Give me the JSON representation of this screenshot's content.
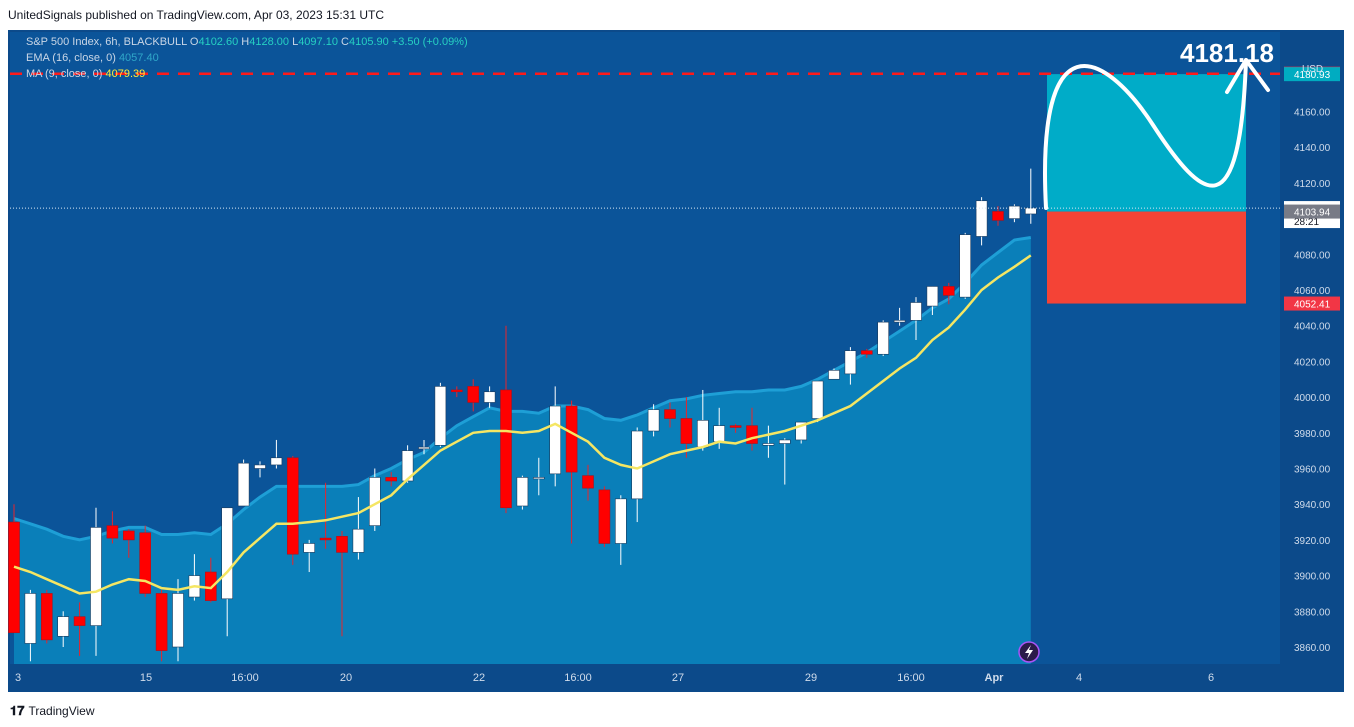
{
  "header": {
    "published_text": "UnitedSignals published on TradingView.com, Apr 03, 2023 15:31 UTC"
  },
  "legend": {
    "symbol": "S&P 500 Index, 6h, BLACKBULL",
    "o_label": "O",
    "o_value": "4102.60",
    "h_label": "H",
    "h_value": "4128.00",
    "l_label": "L",
    "l_value": "4097.10",
    "c_label": "C",
    "c_value": "4105.90",
    "change": "+3.50 (+0.09%)",
    "ema_label": "EMA (16, close, 0)",
    "ema_value": "4057.40",
    "ma_label": "MA (9, close, 0)",
    "ma_value": "4079.39"
  },
  "footer": {
    "brand": "TradingView"
  },
  "annotation": {
    "target_text": "4181.18"
  },
  "chart_data": {
    "type": "candlestick",
    "title": "S&P 500 Index, 6h, BLACKBULL",
    "ylabel": "USD",
    "ylim": [
      3850,
      4190
    ],
    "y_ticks": [
      3860,
      3880,
      3900,
      3920,
      3940,
      3960,
      3980,
      4000,
      4020,
      4040,
      4060,
      4080,
      4100,
      4120,
      4140,
      4160
    ],
    "x_ticks": [
      "3",
      "15",
      "16:00",
      "20",
      "22",
      "16:00",
      "27",
      "29",
      "16:00",
      "Apr",
      "4",
      "6"
    ],
    "candles": [
      {
        "o": 3930,
        "h": 3940,
        "l": 3868,
        "c": 3868
      },
      {
        "o": 3862,
        "h": 3892,
        "l": 3852,
        "c": 3890
      },
      {
        "o": 3890,
        "h": 3892,
        "l": 3862,
        "c": 3864
      },
      {
        "o": 3866,
        "h": 3880,
        "l": 3860,
        "c": 3877
      },
      {
        "o": 3877,
        "h": 3885,
        "l": 3855,
        "c": 3872
      },
      {
        "o": 3872,
        "h": 3938,
        "l": 3855,
        "c": 3927
      },
      {
        "o": 3928,
        "h": 3936,
        "l": 3918,
        "c": 3921
      },
      {
        "o": 3925,
        "h": 3926,
        "l": 3910,
        "c": 3920
      },
      {
        "o": 3924,
        "h": 3928,
        "l": 3888,
        "c": 3890
      },
      {
        "o": 3890,
        "h": 3892,
        "l": 3852,
        "c": 3858
      },
      {
        "o": 3860,
        "h": 3898,
        "l": 3852,
        "c": 3890
      },
      {
        "o": 3888,
        "h": 3912,
        "l": 3886,
        "c": 3900
      },
      {
        "o": 3902,
        "h": 3910,
        "l": 3885,
        "c": 3886
      },
      {
        "o": 3887,
        "h": 3938,
        "l": 3866,
        "c": 3938
      },
      {
        "o": 3939,
        "h": 3965,
        "l": 3939,
        "c": 3963
      },
      {
        "o": 3960,
        "h": 3964,
        "l": 3955,
        "c": 3962
      },
      {
        "o": 3962,
        "h": 3976,
        "l": 3960,
        "c": 3966
      },
      {
        "o": 3966,
        "h": 3967,
        "l": 3906,
        "c": 3912
      },
      {
        "o": 3913,
        "h": 3920,
        "l": 3902,
        "c": 3918
      },
      {
        "o": 3921,
        "h": 3952,
        "l": 3915,
        "c": 3920
      },
      {
        "o": 3922,
        "h": 3925,
        "l": 3866,
        "c": 3913
      },
      {
        "o": 3913,
        "h": 3944,
        "l": 3909,
        "c": 3926
      },
      {
        "o": 3928,
        "h": 3960,
        "l": 3925,
        "c": 3955
      },
      {
        "o": 3955,
        "h": 3958,
        "l": 3950,
        "c": 3953
      },
      {
        "o": 3953,
        "h": 3973,
        "l": 3952,
        "c": 3970
      },
      {
        "o": 3971,
        "h": 3976,
        "l": 3968,
        "c": 3972
      },
      {
        "o": 3973,
        "h": 4008,
        "l": 3972,
        "c": 4006
      },
      {
        "o": 4004,
        "h": 4006,
        "l": 4000,
        "c": 4003
      },
      {
        "o": 4006,
        "h": 4010,
        "l": 3992,
        "c": 3997
      },
      {
        "o": 3997,
        "h": 4006,
        "l": 3994,
        "c": 4003
      },
      {
        "o": 4004,
        "h": 4040,
        "l": 3935,
        "c": 3938
      },
      {
        "o": 3939,
        "h": 3956,
        "l": 3937,
        "c": 3955
      },
      {
        "o": 3955,
        "h": 3966,
        "l": 3945,
        "c": 3955
      },
      {
        "o": 3957,
        "h": 4006,
        "l": 3950,
        "c": 3995
      },
      {
        "o": 3995,
        "h": 3998,
        "l": 3918,
        "c": 3958
      },
      {
        "o": 3956,
        "h": 3962,
        "l": 3942,
        "c": 3949
      },
      {
        "o": 3948,
        "h": 3950,
        "l": 3916,
        "c": 3918
      },
      {
        "o": 3918,
        "h": 3945,
        "l": 3906,
        "c": 3943
      },
      {
        "o": 3943,
        "h": 3983,
        "l": 3930,
        "c": 3981
      },
      {
        "o": 3981,
        "h": 3996,
        "l": 3978,
        "c": 3993
      },
      {
        "o": 3993,
        "h": 3997,
        "l": 3983,
        "c": 3988
      },
      {
        "o": 3988,
        "h": 4000,
        "l": 3966,
        "c": 3974
      },
      {
        "o": 3972,
        "h": 4004,
        "l": 3970,
        "c": 3987
      },
      {
        "o": 3975,
        "h": 3994,
        "l": 3971,
        "c": 3984
      },
      {
        "o": 3984,
        "h": 3985,
        "l": 3980,
        "c": 3983
      },
      {
        "o": 3984,
        "h": 3994,
        "l": 3970,
        "c": 3974
      },
      {
        "o": 3973,
        "h": 3984,
        "l": 3966,
        "c": 3974
      },
      {
        "o": 3974,
        "h": 3977,
        "l": 3951,
        "c": 3976
      },
      {
        "o": 3976,
        "h": 3986,
        "l": 3974,
        "c": 3986
      },
      {
        "o": 3988,
        "h": 4009,
        "l": 3986,
        "c": 4009
      },
      {
        "o": 4010,
        "h": 4016,
        "l": 4010,
        "c": 4015
      },
      {
        "o": 4013,
        "h": 4028,
        "l": 4007,
        "c": 4026
      },
      {
        "o": 4026,
        "h": 4027,
        "l": 4022,
        "c": 4024
      },
      {
        "o": 4024,
        "h": 4043,
        "l": 4023,
        "c": 4042
      },
      {
        "o": 4042,
        "h": 4050,
        "l": 4040,
        "c": 4043
      },
      {
        "o": 4043,
        "h": 4056,
        "l": 4032,
        "c": 4053
      },
      {
        "o": 4051,
        "h": 4062,
        "l": 4046,
        "c": 4062
      },
      {
        "o": 4062,
        "h": 4064,
        "l": 4052,
        "c": 4057
      },
      {
        "o": 4056,
        "h": 4092,
        "l": 4055,
        "c": 4091
      },
      {
        "o": 4090,
        "h": 4112,
        "l": 4085,
        "c": 4110
      },
      {
        "o": 4104,
        "h": 4107,
        "l": 4096,
        "c": 4099
      },
      {
        "o": 4100,
        "h": 4108,
        "l": 4098,
        "c": 4107
      },
      {
        "o": 4102.6,
        "h": 4128,
        "l": 4097.1,
        "c": 4105.9
      }
    ],
    "ema": [
      3900,
      3897,
      3894,
      3890,
      3888,
      3890,
      3893,
      3895,
      3895,
      3891,
      3891,
      3892,
      3891,
      3897,
      3905,
      3912,
      3918,
      3918,
      3918,
      3918,
      3918,
      3919,
      3924,
      3928,
      3933,
      3937,
      3945,
      3952,
      3957,
      3962,
      3960,
      3960,
      3959,
      3963,
      3963,
      3961,
      3956,
      3955,
      3958,
      3962,
      3966,
      3967,
      3969,
      3970,
      3971,
      3971,
      3972,
      3972,
      3974,
      3978,
      3983,
      3988,
      3993,
      3999,
      4005,
      4011,
      4018,
      4023,
      4032,
      4042,
      4049,
      4056,
      4057.4
    ],
    "ma": [
      3905,
      3902,
      3898,
      3894,
      3890,
      3891,
      3895,
      3898,
      3897,
      3893,
      3892,
      3894,
      3893,
      3902,
      3913,
      3921,
      3929,
      3929,
      3930,
      3931,
      3933,
      3935,
      3940,
      3945,
      3954,
      3962,
      3970,
      3975,
      3980,
      3981,
      3981,
      3980,
      3981,
      3985,
      3980,
      3975,
      3966,
      3962,
      3960,
      3964,
      3968,
      3970,
      3972,
      3975,
      3974,
      3977,
      3979,
      3981,
      3984,
      3987,
      3991,
      3995,
      4002,
      4009,
      4016,
      4022,
      4032,
      4039,
      4049,
      4060,
      4067,
      4073,
      4079.39
    ],
    "current_price": 4105.9,
    "countdown": "28:21",
    "price_labels": [
      {
        "text": "4181.18",
        "value": 4181.18,
        "color": "#f23645"
      },
      {
        "text": "4180.93",
        "value": 4180.93,
        "color": "#00acc1"
      },
      {
        "text": "4105.90",
        "value": 4105.9,
        "color": "#ffffff"
      },
      {
        "text": "4103.94",
        "value": 4103.94,
        "color": "#787b86"
      },
      {
        "text": "4052.41",
        "value": 4052.41,
        "color": "#f23645"
      }
    ],
    "position": {
      "entry": 4103.94,
      "target": 4180.93,
      "stop": 4052.41
    },
    "resistance": 4181.18
  }
}
